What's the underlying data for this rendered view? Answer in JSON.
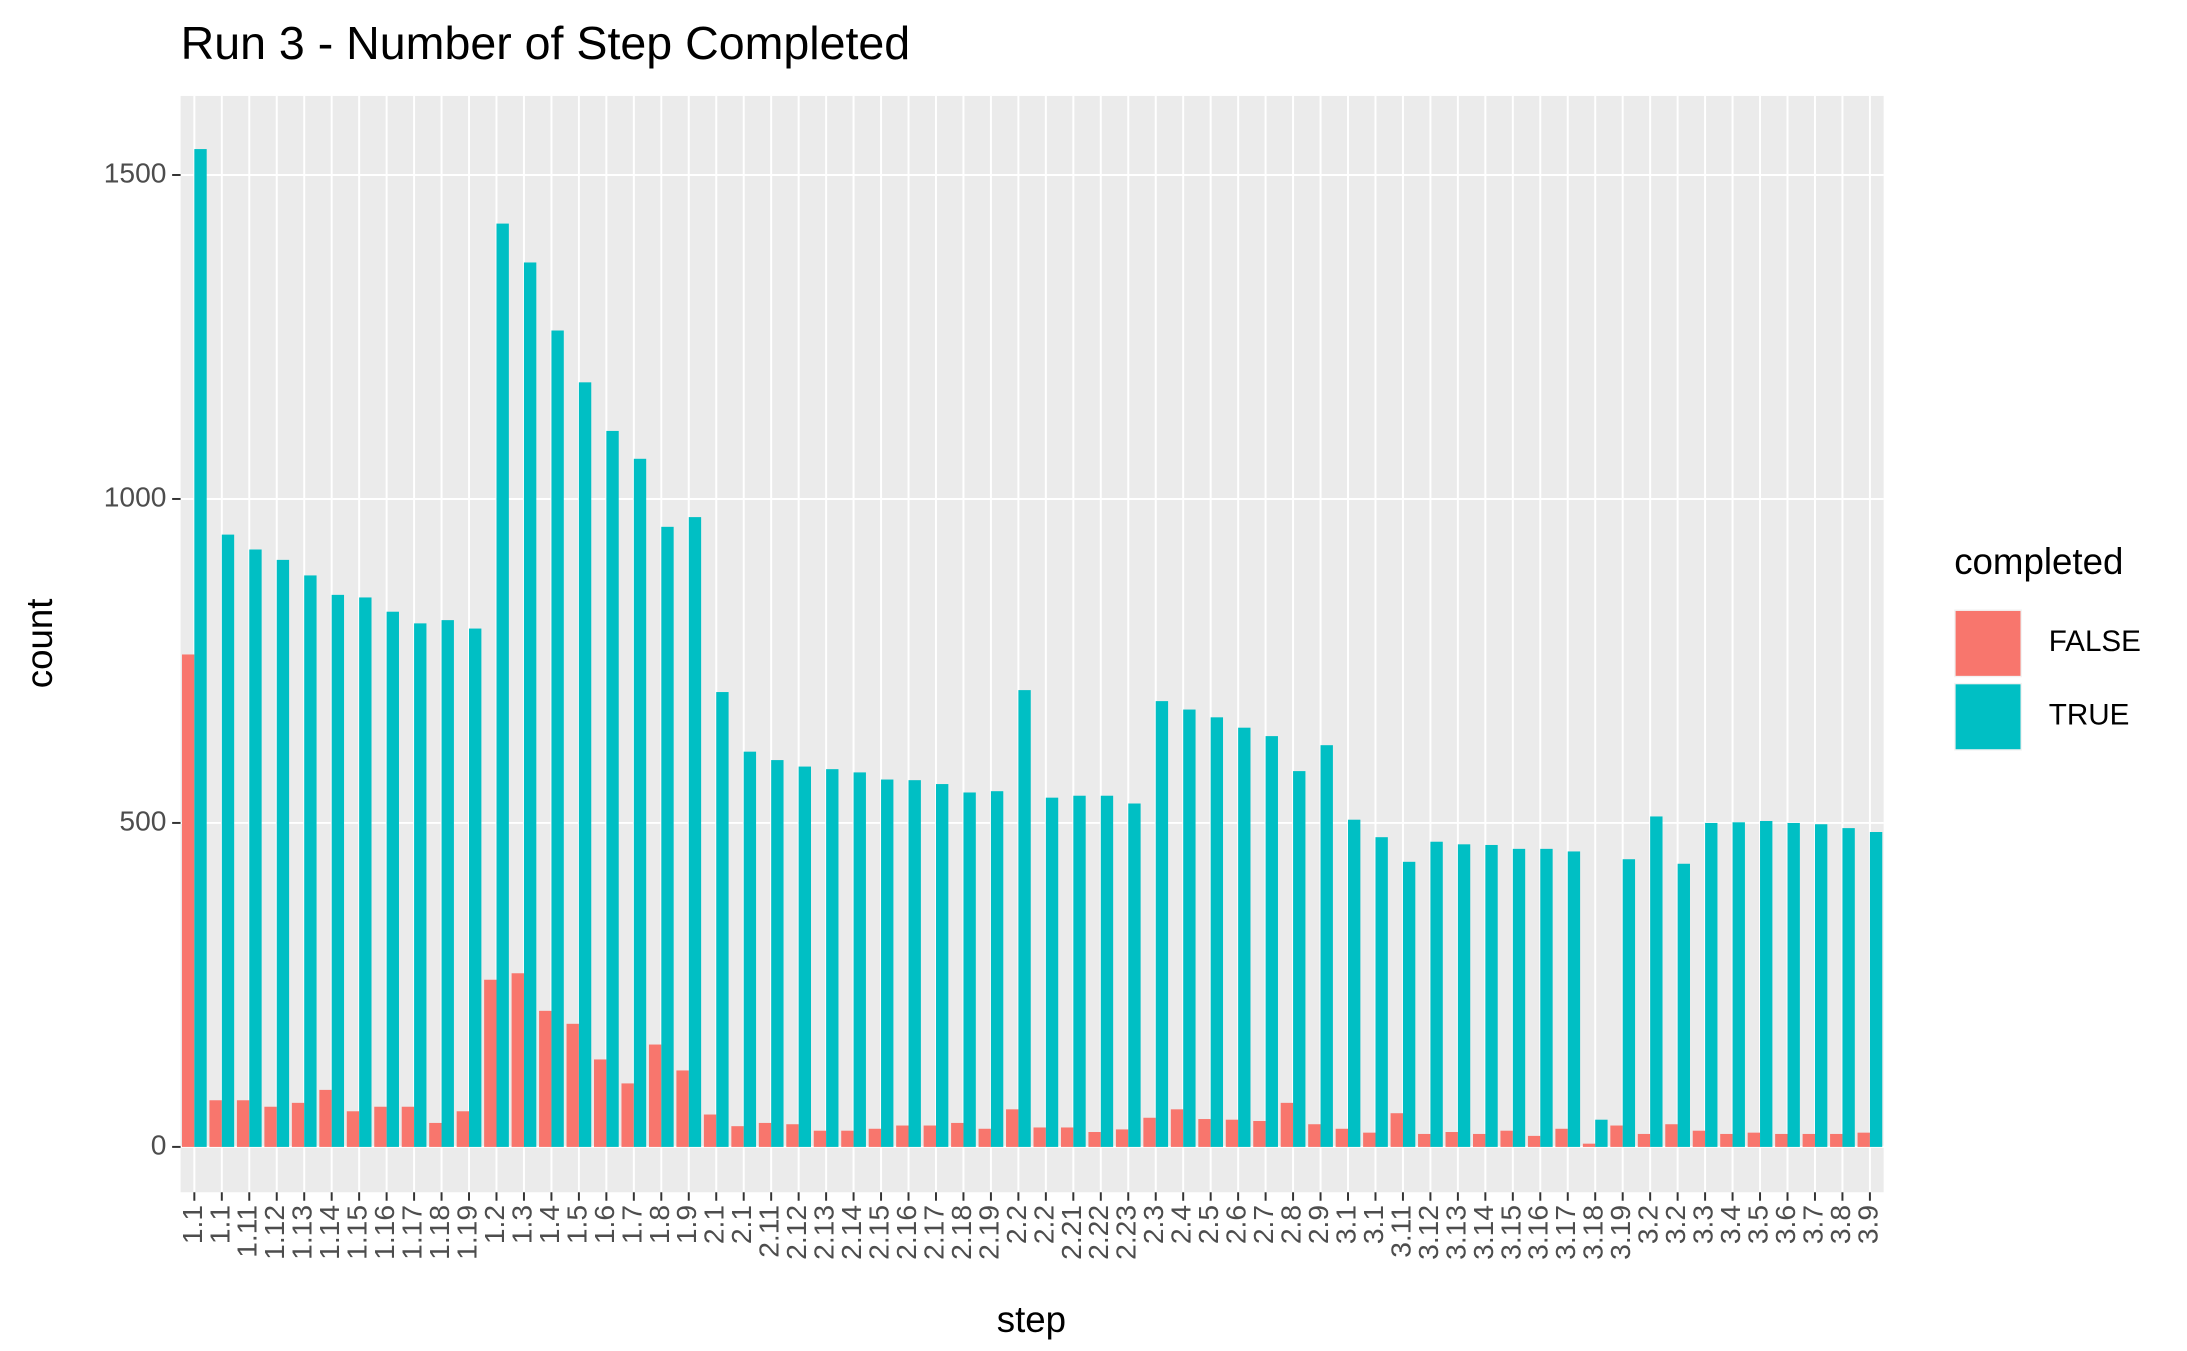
{
  "chart_data": {
    "type": "bar",
    "title": "Run 3 - Number of Step Completed",
    "x_label": "step",
    "y_label": "count",
    "legend_title": "completed",
    "legend": "right",
    "grid": true,
    "categories": [
      "1.1",
      "1.1",
      "1.11",
      "1.12",
      "1.13",
      "1.14",
      "1.15",
      "1.16",
      "1.17",
      "1.18",
      "1.19",
      "1.2",
      "1.3",
      "1.4",
      "1.5",
      "1.6",
      "1.7",
      "1.8",
      "1.9",
      "2.1",
      "2.1",
      "2.11",
      "2.12",
      "2.13",
      "2.14",
      "2.15",
      "2.16",
      "2.17",
      "2.18",
      "2.19",
      "2.2",
      "2.2",
      "2.21",
      "2.22",
      "2.23",
      "2.3",
      "2.4",
      "2.5",
      "2.6",
      "2.7",
      "2.8",
      "2.9",
      "3.1",
      "3.1",
      "3.11",
      "3.12",
      "3.13",
      "3.14",
      "3.15",
      "3.16",
      "3.17",
      "3.18",
      "3.19",
      "3.2",
      "3.2",
      "3.3",
      "3.4",
      "3.5",
      "3.6",
      "3.7",
      "3.8",
      "3.9"
    ],
    "series": [
      {
        "name": "FALSE",
        "color": "#F8766D",
        "values": [
          760,
          72,
          72,
          62,
          68,
          88,
          55,
          62,
          62,
          37,
          55,
          258,
          268,
          210,
          190,
          135,
          98,
          158,
          118,
          50,
          32,
          37,
          35,
          25,
          25,
          28,
          33,
          33,
          37,
          28,
          58,
          30,
          30,
          23,
          27,
          45,
          58,
          43,
          42,
          40,
          68,
          35,
          28,
          22,
          52,
          20,
          23,
          20,
          25,
          17,
          28,
          5,
          33,
          20,
          35,
          25,
          20,
          22,
          20,
          20,
          20,
          22
        ]
      },
      {
        "name": "TRUE",
        "color": "#00BFC4",
        "values": [
          1540,
          945,
          922,
          906,
          882,
          852,
          848,
          826,
          808,
          813,
          800,
          1425,
          1365,
          1260,
          1180,
          1105,
          1062,
          957,
          972,
          702,
          610,
          597,
          587,
          583,
          578,
          567,
          566,
          560,
          547,
          549,
          705,
          539,
          542,
          542,
          530,
          688,
          675,
          663,
          647,
          634,
          580,
          620,
          505,
          478,
          440,
          471,
          467,
          466,
          460,
          460,
          456,
          42,
          444,
          510,
          437,
          500,
          501,
          503,
          500,
          498,
          492,
          486
        ]
      }
    ],
    "ylim": [
      -70,
      1622
    ],
    "yticks": [
      0,
      500,
      1000,
      1500
    ]
  }
}
